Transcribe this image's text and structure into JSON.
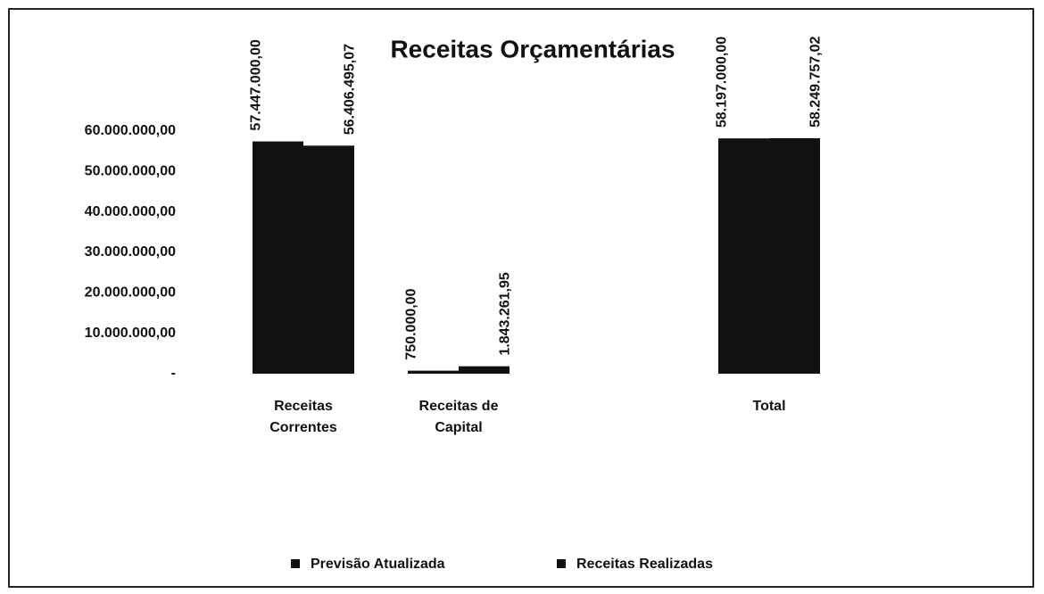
{
  "chart_data": {
    "type": "bar",
    "title": "Receitas Orçamentárias",
    "categories": [
      "Receitas Correntes",
      "Receitas de Capital",
      null,
      "Total"
    ],
    "series": [
      {
        "name": "Previsão Atualizada",
        "color": "#111111",
        "values": [
          57447000,
          750000,
          null,
          58197000
        ],
        "value_labels": [
          "57.447.000,00",
          "750.000,00",
          null,
          "58.197.000,00"
        ]
      },
      {
        "name": "Receitas Realizadas",
        "color": "#111111",
        "values": [
          56406495.07,
          1843261.95,
          null,
          58249757.02
        ],
        "value_labels": [
          "56.406.495,07",
          "1.843.261,95",
          null,
          "58.249.757,02"
        ]
      }
    ],
    "ylim": [
      0,
      60000000
    ],
    "yticks": [
      {
        "value": 0,
        "label": "-"
      },
      {
        "value": 10000000,
        "label": "10.000.000,00"
      },
      {
        "value": 20000000,
        "label": "20.000.000,00"
      },
      {
        "value": 30000000,
        "label": "30.000.000,00"
      },
      {
        "value": 40000000,
        "label": "40.000.000,00"
      },
      {
        "value": 50000000,
        "label": "50.000.000,00"
      },
      {
        "value": 60000000,
        "label": "60.000.000,00"
      }
    ],
    "grid": false,
    "legend": "bottom"
  }
}
